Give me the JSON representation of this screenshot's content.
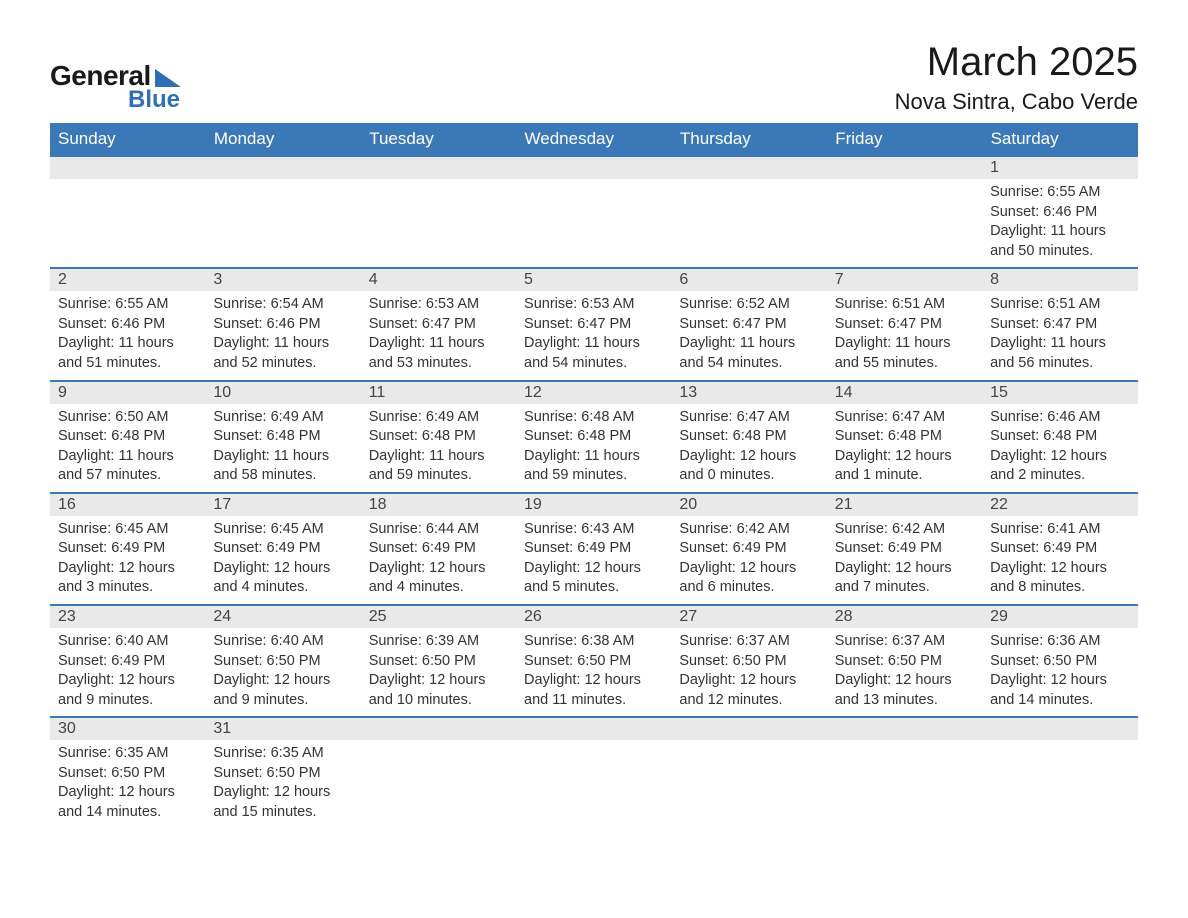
{
  "logo": {
    "word1": "General",
    "word2": "Blue"
  },
  "title": "March 2025",
  "location": "Nova Sintra, Cabo Verde",
  "colors": {
    "header_bg": "#3b78b8",
    "header_text": "#ffffff",
    "daynum_bg": "#e9e9e9",
    "border": "#3b78b8",
    "logo_accent": "#2f6fb3",
    "body_text": "#333333"
  },
  "weekdays": [
    "Sunday",
    "Monday",
    "Tuesday",
    "Wednesday",
    "Thursday",
    "Friday",
    "Saturday"
  ],
  "weeks": [
    [
      null,
      null,
      null,
      null,
      null,
      null,
      {
        "n": "1",
        "sunrise": "Sunrise: 6:55 AM",
        "sunset": "Sunset: 6:46 PM",
        "daylight": "Daylight: 11 hours and 50 minutes."
      }
    ],
    [
      {
        "n": "2",
        "sunrise": "Sunrise: 6:55 AM",
        "sunset": "Sunset: 6:46 PM",
        "daylight": "Daylight: 11 hours and 51 minutes."
      },
      {
        "n": "3",
        "sunrise": "Sunrise: 6:54 AM",
        "sunset": "Sunset: 6:46 PM",
        "daylight": "Daylight: 11 hours and 52 minutes."
      },
      {
        "n": "4",
        "sunrise": "Sunrise: 6:53 AM",
        "sunset": "Sunset: 6:47 PM",
        "daylight": "Daylight: 11 hours and 53 minutes."
      },
      {
        "n": "5",
        "sunrise": "Sunrise: 6:53 AM",
        "sunset": "Sunset: 6:47 PM",
        "daylight": "Daylight: 11 hours and 54 minutes."
      },
      {
        "n": "6",
        "sunrise": "Sunrise: 6:52 AM",
        "sunset": "Sunset: 6:47 PM",
        "daylight": "Daylight: 11 hours and 54 minutes."
      },
      {
        "n": "7",
        "sunrise": "Sunrise: 6:51 AM",
        "sunset": "Sunset: 6:47 PM",
        "daylight": "Daylight: 11 hours and 55 minutes."
      },
      {
        "n": "8",
        "sunrise": "Sunrise: 6:51 AM",
        "sunset": "Sunset: 6:47 PM",
        "daylight": "Daylight: 11 hours and 56 minutes."
      }
    ],
    [
      {
        "n": "9",
        "sunrise": "Sunrise: 6:50 AM",
        "sunset": "Sunset: 6:48 PM",
        "daylight": "Daylight: 11 hours and 57 minutes."
      },
      {
        "n": "10",
        "sunrise": "Sunrise: 6:49 AM",
        "sunset": "Sunset: 6:48 PM",
        "daylight": "Daylight: 11 hours and 58 minutes."
      },
      {
        "n": "11",
        "sunrise": "Sunrise: 6:49 AM",
        "sunset": "Sunset: 6:48 PM",
        "daylight": "Daylight: 11 hours and 59 minutes."
      },
      {
        "n": "12",
        "sunrise": "Sunrise: 6:48 AM",
        "sunset": "Sunset: 6:48 PM",
        "daylight": "Daylight: 11 hours and 59 minutes."
      },
      {
        "n": "13",
        "sunrise": "Sunrise: 6:47 AM",
        "sunset": "Sunset: 6:48 PM",
        "daylight": "Daylight: 12 hours and 0 minutes."
      },
      {
        "n": "14",
        "sunrise": "Sunrise: 6:47 AM",
        "sunset": "Sunset: 6:48 PM",
        "daylight": "Daylight: 12 hours and 1 minute."
      },
      {
        "n": "15",
        "sunrise": "Sunrise: 6:46 AM",
        "sunset": "Sunset: 6:48 PM",
        "daylight": "Daylight: 12 hours and 2 minutes."
      }
    ],
    [
      {
        "n": "16",
        "sunrise": "Sunrise: 6:45 AM",
        "sunset": "Sunset: 6:49 PM",
        "daylight": "Daylight: 12 hours and 3 minutes."
      },
      {
        "n": "17",
        "sunrise": "Sunrise: 6:45 AM",
        "sunset": "Sunset: 6:49 PM",
        "daylight": "Daylight: 12 hours and 4 minutes."
      },
      {
        "n": "18",
        "sunrise": "Sunrise: 6:44 AM",
        "sunset": "Sunset: 6:49 PM",
        "daylight": "Daylight: 12 hours and 4 minutes."
      },
      {
        "n": "19",
        "sunrise": "Sunrise: 6:43 AM",
        "sunset": "Sunset: 6:49 PM",
        "daylight": "Daylight: 12 hours and 5 minutes."
      },
      {
        "n": "20",
        "sunrise": "Sunrise: 6:42 AM",
        "sunset": "Sunset: 6:49 PM",
        "daylight": "Daylight: 12 hours and 6 minutes."
      },
      {
        "n": "21",
        "sunrise": "Sunrise: 6:42 AM",
        "sunset": "Sunset: 6:49 PM",
        "daylight": "Daylight: 12 hours and 7 minutes."
      },
      {
        "n": "22",
        "sunrise": "Sunrise: 6:41 AM",
        "sunset": "Sunset: 6:49 PM",
        "daylight": "Daylight: 12 hours and 8 minutes."
      }
    ],
    [
      {
        "n": "23",
        "sunrise": "Sunrise: 6:40 AM",
        "sunset": "Sunset: 6:49 PM",
        "daylight": "Daylight: 12 hours and 9 minutes."
      },
      {
        "n": "24",
        "sunrise": "Sunrise: 6:40 AM",
        "sunset": "Sunset: 6:50 PM",
        "daylight": "Daylight: 12 hours and 9 minutes."
      },
      {
        "n": "25",
        "sunrise": "Sunrise: 6:39 AM",
        "sunset": "Sunset: 6:50 PM",
        "daylight": "Daylight: 12 hours and 10 minutes."
      },
      {
        "n": "26",
        "sunrise": "Sunrise: 6:38 AM",
        "sunset": "Sunset: 6:50 PM",
        "daylight": "Daylight: 12 hours and 11 minutes."
      },
      {
        "n": "27",
        "sunrise": "Sunrise: 6:37 AM",
        "sunset": "Sunset: 6:50 PM",
        "daylight": "Daylight: 12 hours and 12 minutes."
      },
      {
        "n": "28",
        "sunrise": "Sunrise: 6:37 AM",
        "sunset": "Sunset: 6:50 PM",
        "daylight": "Daylight: 12 hours and 13 minutes."
      },
      {
        "n": "29",
        "sunrise": "Sunrise: 6:36 AM",
        "sunset": "Sunset: 6:50 PM",
        "daylight": "Daylight: 12 hours and 14 minutes."
      }
    ],
    [
      {
        "n": "30",
        "sunrise": "Sunrise: 6:35 AM",
        "sunset": "Sunset: 6:50 PM",
        "daylight": "Daylight: 12 hours and 14 minutes."
      },
      {
        "n": "31",
        "sunrise": "Sunrise: 6:35 AM",
        "sunset": "Sunset: 6:50 PM",
        "daylight": "Daylight: 12 hours and 15 minutes."
      },
      null,
      null,
      null,
      null,
      null
    ]
  ]
}
